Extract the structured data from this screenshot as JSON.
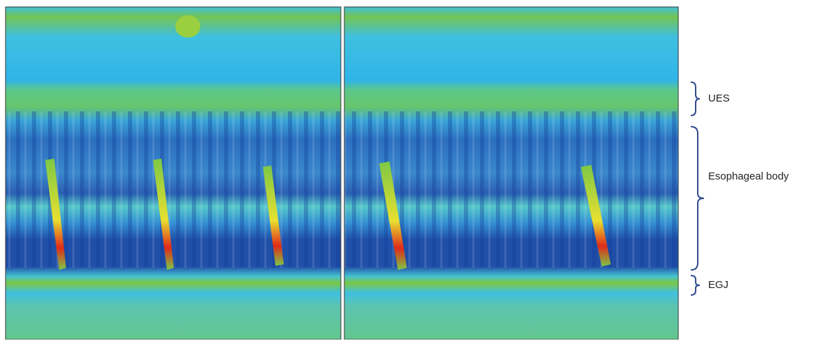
{
  "labels": {
    "ues": "UES",
    "body": "Esophageal body",
    "egj": "EGJ"
  }
}
